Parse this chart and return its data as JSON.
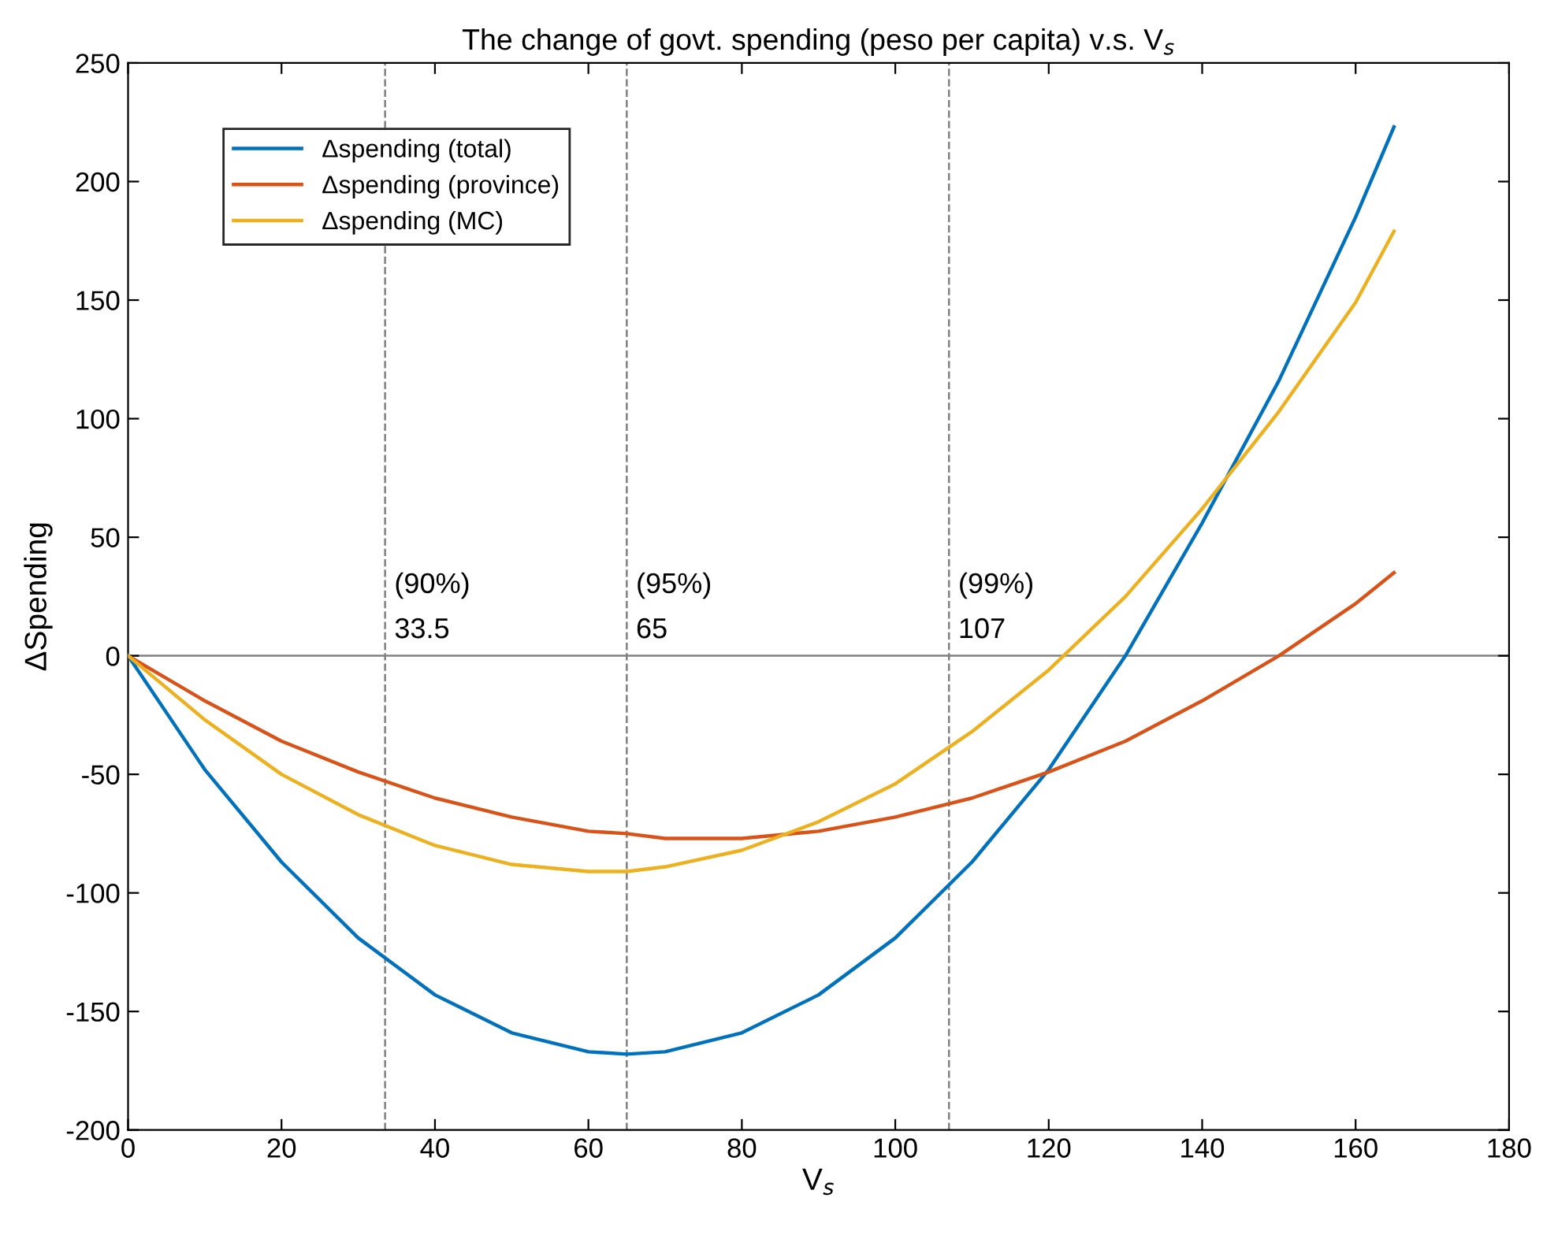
{
  "chart_data": {
    "type": "line",
    "title": "The change of govt. spending (peso per capita) v.s. V$_{s}$",
    "xlabel": "V$_{s}$",
    "ylabel": "ΔSpending",
    "x": [
      0,
      10,
      20,
      30,
      40,
      50,
      60,
      65,
      70,
      80,
      90,
      100,
      110,
      120,
      130,
      140,
      150,
      160,
      165
    ],
    "series": [
      {
        "name": "Δspending (total)",
        "color": "#0072bd",
        "values": [
          0,
          -48,
          -87,
          -119,
          -143,
          -159,
          -167,
          -168,
          -167,
          -159,
          -143,
          -119,
          -87,
          -48,
          0,
          56,
          116,
          185,
          223
        ]
      },
      {
        "name": "Δspending (province)",
        "color": "#d95319",
        "values": [
          0,
          -19,
          -36,
          -49,
          -60,
          -68,
          -74,
          -75,
          -77,
          -77,
          -74,
          -68,
          -60,
          -49,
          -36,
          -19,
          0,
          22,
          35
        ]
      },
      {
        "name": "Δspending (MC)",
        "color": "#edb120",
        "values": [
          0,
          -27,
          -50,
          -67,
          -80,
          -88,
          -91,
          -91,
          -89,
          -82,
          -70,
          -54,
          -32,
          -6,
          25,
          62,
          103,
          149,
          179
        ]
      }
    ],
    "xlim": [
      0,
      180
    ],
    "xticks": [
      0,
      20,
      40,
      60,
      80,
      100,
      120,
      140,
      160,
      180
    ],
    "ylim": [
      -200,
      250
    ],
    "yticks": [
      -200,
      -150,
      -100,
      -50,
      0,
      50,
      100,
      150,
      200,
      250
    ],
    "ref_lines": [
      {
        "axis": "x",
        "value": 33.5,
        "label": "(90%)\n33.5",
        "color": "#808080",
        "line_style": "dashed"
      },
      {
        "axis": "x",
        "value": 65,
        "label": "(95%)\n65",
        "color": "#808080",
        "line_style": "dashed"
      },
      {
        "axis": "x",
        "value": 107,
        "label": "(99%)\n107",
        "color": "#808080",
        "line_style": "dashed"
      },
      {
        "axis": "y",
        "value": 0,
        "color": "#808080",
        "line_style": "solid"
      }
    ],
    "legend": "top left",
    "grid": false,
    "marker": "none",
    "line_style": "solid"
  }
}
